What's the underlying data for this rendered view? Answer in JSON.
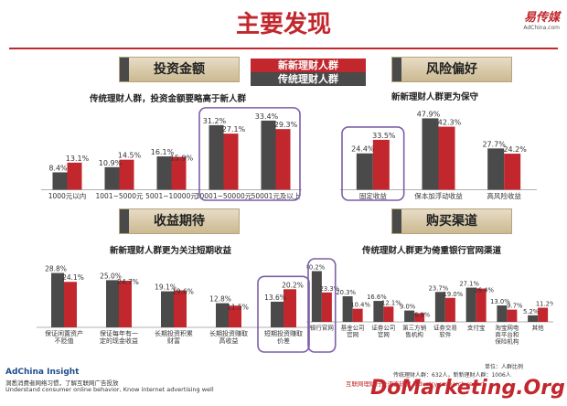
{
  "page": {
    "title": "主要发现",
    "logo_brand": "易传媒",
    "logo_url": "AdChina.com",
    "legend": {
      "series1": "新新理财人群",
      "series2": "传统理财人群"
    },
    "colors": {
      "series1": "#c1272d",
      "series2": "#4a4a4a",
      "highlight": "#7d5ea8"
    },
    "footer": {
      "brand": "AdChina Insight",
      "line1": "洞悉消费者网络习惯，了解互联网广告投放",
      "line2": "Understand consumer online behavior, Know internet advertising well"
    },
    "note_unit": "单位：人群比例",
    "note_base": "传统理财人群：632人，新新理财人群：1006人",
    "note_source": "互联网理财行业调查研究 industry research report",
    "watermark": "DoMarketing.Org"
  },
  "chart_data": [
    {
      "type": "bar",
      "title": "投资金额",
      "subtitle": "传统理财人群，投资金额要略高于新人群",
      "categories": [
        "1000元以内",
        "1001~5000元",
        "5001~10000元",
        "10001~50000元",
        "50001元及以上"
      ],
      "series": [
        {
          "name": "传统理财人群",
          "values": [
            8.4,
            10.9,
            16.1,
            31.2,
            33.4
          ]
        },
        {
          "name": "新新理财人群",
          "values": [
            13.1,
            14.5,
            15.9,
            27.1,
            29.3
          ]
        }
      ],
      "highlight": [
        3,
        4
      ],
      "ylim": [
        0,
        36
      ]
    },
    {
      "type": "bar",
      "title": "风险偏好",
      "subtitle": "新新理财人群更为保守",
      "categories": [
        "固定收益",
        "保本加浮动收益",
        "高风险收益"
      ],
      "series": [
        {
          "name": "传统理财人群",
          "values": [
            24.4,
            47.9,
            27.7
          ]
        },
        {
          "name": "新新理财人群",
          "values": [
            33.5,
            42.3,
            24.2
          ]
        }
      ],
      "highlight": [
        0
      ],
      "ylim": [
        0,
        50
      ]
    },
    {
      "type": "bar",
      "title": "收益期待",
      "subtitle": "新新理财人群更为关注短期收益",
      "categories": [
        "保证闲置资产不贬值",
        "保证每年有一定的现金收益",
        "长期投资积累财富",
        "长期投资赚取高收益",
        "短期投资赚取价差"
      ],
      "series": [
        {
          "name": "传统理财人群",
          "values": [
            28.8,
            25.0,
            19.1,
            12.8,
            13.6
          ]
        },
        {
          "name": "新新理财人群",
          "values": [
            24.1,
            24.7,
            19.6,
            11.5,
            20.2
          ]
        }
      ],
      "highlight": [
        4
      ],
      "ylim": [
        0,
        31
      ]
    },
    {
      "type": "bar",
      "title": "购买渠道",
      "subtitle": "传统理财人群更为倚重银行官网渠道",
      "categories": [
        "银行官网",
        "基金公司官网",
        "证券公司官网",
        "第三方销售机构",
        "证券交易软件",
        "支付宝",
        "淘宝网电商平台和保险机构",
        "其他"
      ],
      "series": [
        {
          "name": "传统理财人群",
          "values": [
            40.2,
            20.3,
            16.6,
            9.0,
            23.7,
            27.1,
            13.0,
            5.2
          ]
        },
        {
          "name": "新新理财人群",
          "values": [
            23.3,
            10.4,
            12.1,
            6.9,
            19.0,
            26.4,
            9.7,
            11.2
          ]
        }
      ],
      "highlight": [
        0
      ],
      "ylim": [
        0,
        42
      ]
    }
  ]
}
